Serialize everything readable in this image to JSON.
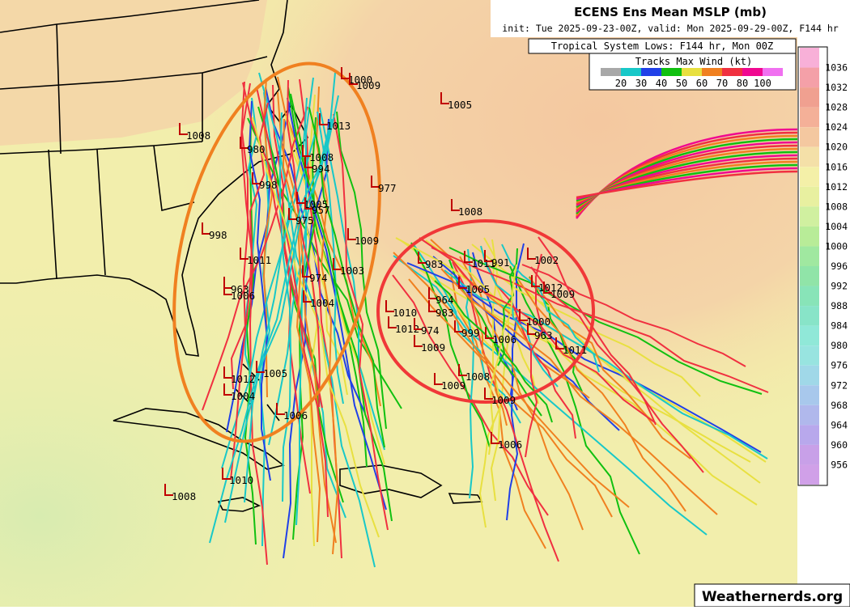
{
  "header": {
    "title": "ECENS Ens Mean MSLP (mb)",
    "init": "init: Tue 2025-09-23-00Z, valid: Mon 2025-09-29-00Z, F144 hr"
  },
  "subtitle": "Tropical System Lows: F144 hr, Mon 00Z",
  "wind_legend": {
    "title": "Tracks Max Wind (kt)",
    "colors": [
      "#a8a8a8",
      "#18c8c8",
      "#2040e8",
      "#10c010",
      "#e8e040",
      "#f08020",
      "#f03040",
      "#f00890",
      "#f070f0"
    ],
    "labels": [
      20,
      30,
      40,
      50,
      60,
      70,
      80,
      100
    ]
  },
  "pressure_scale": {
    "labels": [
      1036,
      1032,
      1028,
      1024,
      1020,
      1016,
      1012,
      1008,
      1004,
      1000,
      996,
      992,
      988,
      984,
      980,
      976,
      972,
      968,
      964,
      960,
      956
    ],
    "colors": [
      "#f8b0d8",
      "#f4a0a8",
      "#f0a090",
      "#f4b098",
      "#f4c8a0",
      "#f4e0a8",
      "#f4f0a8",
      "#e8f0a0",
      "#d0f0a0",
      "#b8ec98",
      "#a0e8a0",
      "#90e4a8",
      "#88e4b8",
      "#88e4c8",
      "#90e8d8",
      "#98e4e0",
      "#a0d8e8",
      "#a8c8ec",
      "#b0b8ec",
      "#b8a8ec",
      "#c8a0e8",
      "#d0a0e8"
    ]
  },
  "lows": [
    "1000",
    "1009",
    "1005",
    "1013",
    "1008",
    "980",
    "1008",
    "994",
    "998",
    "977",
    "1005",
    "957",
    "975",
    "1008",
    "998",
    "1009",
    "1011",
    "983",
    "1011",
    "991",
    "1002",
    "1003",
    "974",
    "963",
    "1006",
    "1005",
    "1012",
    "1009",
    "964",
    "1004",
    "1010",
    "983",
    "1012",
    "974",
    "999",
    "1000",
    "963",
    "1009",
    "1006",
    "1011",
    "1005",
    "1008",
    "1012",
    "1009",
    "1004",
    "1009",
    "1006",
    "1006",
    "1010",
    "1008"
  ],
  "watermark": "Weathernerds.org"
}
